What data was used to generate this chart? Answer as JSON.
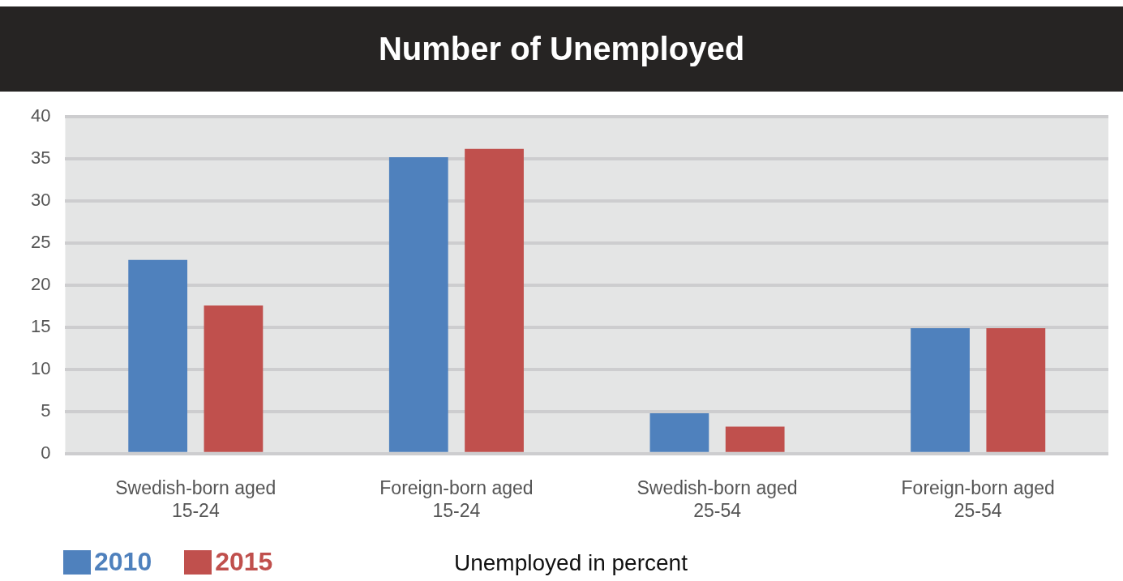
{
  "chart_data": {
    "type": "bar",
    "title": "Number of Unemployed",
    "xlabel": "Unemployed in percent",
    "categories": [
      "Swedish-born aged 15-24",
      "Foreign-born aged 15-24",
      "Swedish-born aged 25-54",
      "Foreign-born aged 25-54"
    ],
    "series": [
      {
        "name": "2010",
        "color": "#4f81bd",
        "values": [
          23,
          35.2,
          4.8,
          14.9
        ]
      },
      {
        "name": "2015",
        "color": "#c0504d",
        "values": [
          17.6,
          36.2,
          3.2,
          14.9
        ]
      }
    ],
    "ylim": [
      0,
      40
    ],
    "yticks": [
      0,
      5,
      10,
      15,
      20,
      25,
      30,
      35,
      40
    ],
    "grid": "y",
    "legend": "bottom left"
  }
}
